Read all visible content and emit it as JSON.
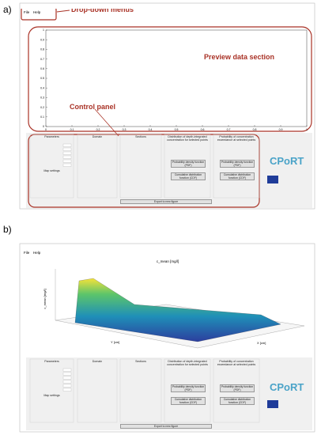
{
  "panel_a": {
    "label": "a)",
    "menu": [
      "File",
      "Help"
    ],
    "annotations": {
      "menus": "Drop-down menus",
      "preview": "Preview data section",
      "control": "Control panel"
    },
    "preview_axes": {
      "xticks": [
        0,
        0.1,
        0.2,
        0.3,
        0.4,
        0.5,
        0.6,
        0.7,
        0.8,
        0.9,
        1
      ],
      "yticks": [
        0,
        0.1,
        0.2,
        0.3,
        0.4,
        0.5,
        0.6,
        0.7,
        0.8,
        0.9,
        1
      ]
    },
    "controls": {
      "headers": [
        "Parameters",
        "Domain",
        "Sections",
        "Distribution of depth-integrated concentration for selected points",
        "Probability of concentration exceedance at selected points"
      ],
      "map_settings": "Map settings",
      "buttons": [
        "Probability density function (PDF)",
        "Cumulative distribution function (CDF)"
      ],
      "export": "Export to new figure"
    },
    "logo": "CPoRT"
  },
  "panel_b": {
    "label": "b)",
    "menu": [
      "File",
      "Help"
    ],
    "plot_title": "c_mean [mg/l]",
    "x_label": "X [cm]",
    "y_label": "Y [cm]",
    "z_label": "c_mean [mg/l]",
    "controls": {
      "headers": [
        "Parameters",
        "Domain",
        "Sections",
        "Distribution of depth-integrated concentration for selected points",
        "Probability of concentration exceedance at selected points"
      ],
      "map_settings": "Map settings",
      "buttons": [
        "Probability density function (PDF)",
        "Cumulative distribution function (CDF)"
      ],
      "export": "Export to new figure"
    },
    "logo": "CPoRT"
  }
}
